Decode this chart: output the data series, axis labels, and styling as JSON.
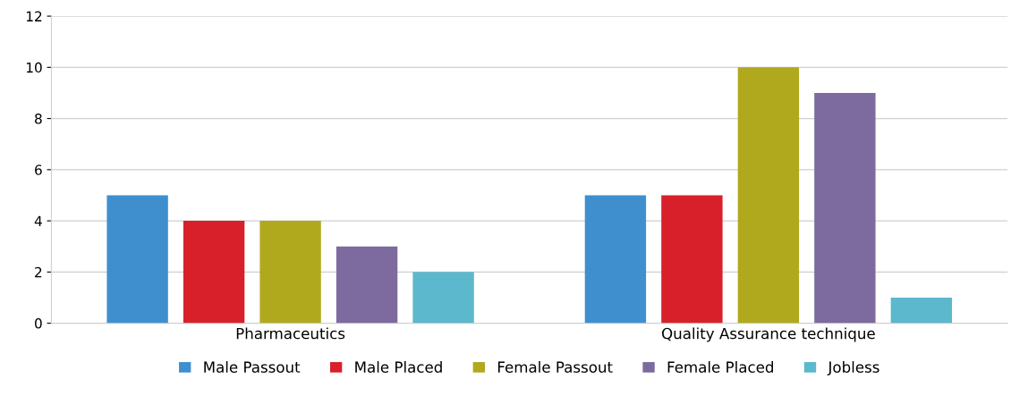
{
  "chart_data": {
    "type": "bar",
    "categories": [
      "Pharmaceutics",
      "Quality Assurance technique"
    ],
    "series": [
      {
        "name": "Male Passout",
        "color": "#3f8fcf",
        "values": [
          5,
          5
        ]
      },
      {
        "name": "Male Placed",
        "color": "#d8202a",
        "values": [
          4,
          5
        ]
      },
      {
        "name": "Female Passout",
        "color": "#b0a91e",
        "values": [
          4,
          10
        ]
      },
      {
        "name": "Female Placed",
        "color": "#7d6a9e",
        "values": [
          3,
          9
        ]
      },
      {
        "name": "Jobless",
        "color": "#5cb8cc",
        "values": [
          2,
          1
        ]
      }
    ],
    "ylim": [
      0,
      12
    ],
    "yticks": [
      0,
      2,
      4,
      6,
      8,
      10,
      12
    ],
    "grid": "y",
    "legend": "bottom"
  }
}
